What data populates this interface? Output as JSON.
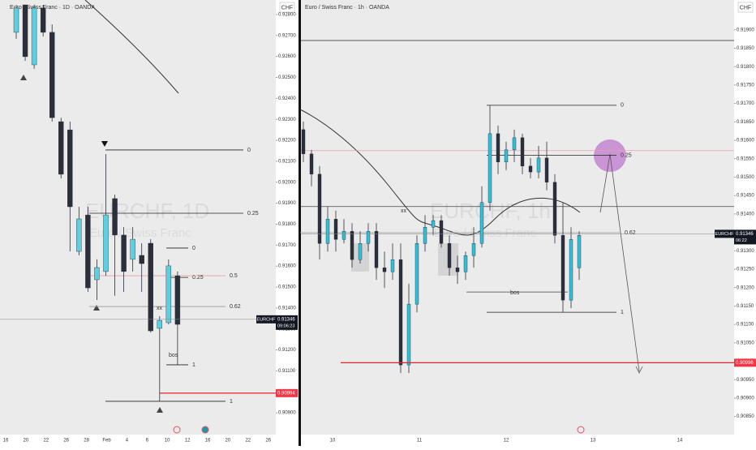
{
  "chart_data": [
    {
      "type": "candlestick",
      "header": "Euro / Swiss Franc · 1D · OANDA",
      "currency": "CHF",
      "watermark": "EURCHF, 1D",
      "watermark_sub": "Euro / Swiss Franc",
      "bull_color": "#5ccfe0",
      "bear_color": "#2b2f3a",
      "open": [
        0.92715,
        0.92846,
        0.9256,
        0.92831,
        0.92715,
        0.92289,
        0.9225,
        0.9167,
        0.91844,
        0.91535,
        0.91574,
        0.91922,
        0.91748,
        0.91632,
        0.91651,
        0.91709,
        0.91303,
        0.9133,
        0.91554
      ],
      "high": [
        0.92846,
        0.92846,
        0.92846,
        0.92846,
        0.92753,
        0.92308,
        0.92289,
        0.91883,
        0.91883,
        0.91632,
        0.92134,
        0.91941,
        0.91786,
        0.91786,
        0.91709,
        0.91728,
        0.91361,
        0.91632,
        0.91574
      ],
      "low": [
        0.92684,
        0.92579,
        0.92541,
        0.92695,
        0.92289,
        0.92018,
        0.9167,
        0.91651,
        0.91477,
        0.91438,
        0.91554,
        0.91458,
        0.91477,
        0.91574,
        0.91477,
        0.91283,
        0.90955,
        0.91322,
        0.91129
      ],
      "close": [
        0.92831,
        0.92599,
        0.92831,
        0.92715,
        0.92308,
        0.92038,
        0.91883,
        0.91825,
        0.91496,
        0.91593,
        0.91844,
        0.91748,
        0.91574,
        0.91728,
        0.91612,
        0.91291,
        0.91341,
        0.91601,
        0.91322
      ],
      "x_labels": [
        "16",
        "20",
        "22",
        "26",
        "28",
        "Feb",
        "4",
        "6",
        "10",
        "12",
        "16",
        "20",
        "22",
        "26"
      ],
      "ylim": [
        0.908,
        0.9285
      ],
      "yticks": [
        {
          "value": 0.909,
          "label": "0.90900"
        },
        {
          "value": 0.91,
          "label": "0.91000"
        },
        {
          "value": 0.911,
          "label": "0.91100"
        },
        {
          "value": 0.912,
          "label": "0.91200"
        },
        {
          "value": 0.913,
          "label": "0.91300"
        },
        {
          "value": 0.914,
          "label": "0.91400"
        },
        {
          "value": 0.915,
          "label": "0.91500"
        },
        {
          "value": 0.916,
          "label": "0.91600"
        },
        {
          "value": 0.917,
          "label": "0.91700"
        },
        {
          "value": 0.918,
          "label": "0.91800"
        },
        {
          "value": 0.919,
          "label": "0.91900"
        },
        {
          "value": 0.92,
          "label": "0.92000"
        },
        {
          "value": 0.921,
          "label": "0.92100"
        },
        {
          "value": 0.922,
          "label": "0.92200"
        },
        {
          "value": 0.923,
          "label": "0.92300"
        },
        {
          "value": 0.924,
          "label": "0.92400"
        },
        {
          "value": 0.925,
          "label": "0.92500"
        },
        {
          "value": 0.926,
          "label": "0.92600"
        },
        {
          "value": 0.927,
          "label": "0.92700"
        },
        {
          "value": 0.928,
          "label": "0.92800"
        }
      ],
      "levels": [
        {
          "label": "0",
          "price": 0.92154,
          "color": "#222222"
        },
        {
          "label": "0.25",
          "price": 0.91852,
          "color": "#222222"
        },
        {
          "label": "0",
          "price": 0.91686,
          "color": "#222222"
        },
        {
          "label": "0.25",
          "price": 0.91546,
          "color": "#222222"
        },
        {
          "label": "0.5",
          "price": 0.91554,
          "color": "#e8a0a8"
        },
        {
          "label": "0.62",
          "price": 0.91407,
          "color": "#999999"
        },
        {
          "label": "1",
          "price": 0.91129,
          "color": "#222222"
        },
        {
          "label": "1",
          "price": 0.90955,
          "color": "#222222"
        }
      ],
      "lines": [],
      "annotations": [
        "bos",
        "xx"
      ],
      "price_tag": {
        "symbol": "EURCHF",
        "price": 0.91346,
        "countdown": "09:06:23"
      },
      "target": 0.90994
    },
    {
      "type": "candlestick",
      "header": "Euro / Swiss Franc · 1h · OANDA",
      "currency": "CHF",
      "watermark": "EURCHF, 1h",
      "watermark_sub": "Euro / Swiss Franc",
      "bull_color": "#2fbfd6",
      "bear_color": "#2b2f3a",
      "open": [
        0.91629,
        0.91563,
        0.91508,
        0.9132,
        0.91386,
        0.91331,
        0.91353,
        0.91276,
        0.9132,
        0.91353,
        0.91254,
        0.91243,
        0.91276,
        0.9099,
        0.91155,
        0.9132,
        0.91364,
        0.91382,
        0.9132,
        0.91254,
        0.91243,
        0.91287,
        0.9132,
        0.91431,
        0.91618,
        0.91541,
        0.91574,
        0.91607,
        0.9153,
        0.91514,
        0.91552,
        0.91486,
        0.91342,
        0.91166,
        0.91254
      ],
      "high": [
        0.91651,
        0.91574,
        0.9153,
        0.9142,
        0.91409,
        0.91386,
        0.91375,
        0.91353,
        0.91375,
        0.91375,
        0.91298,
        0.9132,
        0.9132,
        0.9121,
        0.91342,
        0.91397,
        0.91397,
        0.91397,
        0.91342,
        0.91287,
        0.91298,
        0.91364,
        0.91475,
        0.91695,
        0.9164,
        0.91596,
        0.91629,
        0.91618,
        0.91552,
        0.91585,
        0.91596,
        0.91508,
        0.91431,
        0.91364,
        0.91353
      ],
      "low": [
        0.91541,
        0.91475,
        0.91276,
        0.91298,
        0.91298,
        0.9132,
        0.91254,
        0.91265,
        0.91298,
        0.91221,
        0.91199,
        0.91221,
        0.90968,
        0.90968,
        0.91133,
        0.91298,
        0.91342,
        0.91309,
        0.91232,
        0.9121,
        0.91221,
        0.91254,
        0.91309,
        0.91409,
        0.91508,
        0.91519,
        0.91541,
        0.91508,
        0.91497,
        0.91497,
        0.91464,
        0.9132,
        0.91133,
        0.91144,
        0.91221
      ],
      "close": [
        0.91563,
        0.91508,
        0.9132,
        0.91386,
        0.91331,
        0.91353,
        0.91276,
        0.9132,
        0.91353,
        0.91254,
        0.91243,
        0.91276,
        0.9099,
        0.91155,
        0.9132,
        0.91364,
        0.91382,
        0.9132,
        0.91254,
        0.91243,
        0.91287,
        0.9132,
        0.91431,
        0.91618,
        0.91541,
        0.91574,
        0.91607,
        0.9153,
        0.91514,
        0.91552,
        0.91486,
        0.91342,
        0.91166,
        0.91331,
        0.91342
      ],
      "x_labels": [
        "10",
        "11",
        "12",
        "13",
        "14"
      ],
      "ylim": [
        0.90803,
        0.9197
      ],
      "yticks": [
        {
          "value": 0.9085,
          "label": "0.90850"
        },
        {
          "value": 0.909,
          "label": "0.90900"
        },
        {
          "value": 0.9095,
          "label": "0.90950"
        },
        {
          "value": 0.91,
          "label": "0.91000"
        },
        {
          "value": 0.9105,
          "label": "0.91050"
        },
        {
          "value": 0.911,
          "label": "0.91100"
        },
        {
          "value": 0.9115,
          "label": "0.91150"
        },
        {
          "value": 0.912,
          "label": "0.91200"
        },
        {
          "value": 0.9125,
          "label": "0.91250"
        },
        {
          "value": 0.913,
          "label": "0.91300"
        },
        {
          "value": 0.9135,
          "label": "0.91350"
        },
        {
          "value": 0.914,
          "label": "0.91400"
        },
        {
          "value": 0.9145,
          "label": "0.91450"
        },
        {
          "value": 0.915,
          "label": "0.91500"
        },
        {
          "value": 0.9155,
          "label": "0.91550"
        },
        {
          "value": 0.916,
          "label": "0.91600"
        },
        {
          "value": 0.9165,
          "label": "0.91650"
        },
        {
          "value": 0.917,
          "label": "0.91700"
        },
        {
          "value": 0.9175,
          "label": "0.91750"
        },
        {
          "value": 0.918,
          "label": "0.91800"
        },
        {
          "value": 0.9185,
          "label": "0.91850"
        },
        {
          "value": 0.919,
          "label": "0.91900"
        }
      ],
      "levels": [
        {
          "label": "0",
          "price": 0.91695,
          "color": "#222222"
        },
        {
          "label": "0.25",
          "price": 0.91559,
          "color": "#222222"
        },
        {
          "label": "0.62",
          "price": 0.91349,
          "color": "#999999"
        },
        {
          "label": "1",
          "price": 0.91133,
          "color": "#222222"
        }
      ],
      "lines": [
        {
          "price": 0.91572,
          "color": "#e8a0a8"
        },
        {
          "price": 0.9142,
          "color": "#444444"
        },
        {
          "price": 0.91871,
          "color": "#444444"
        },
        {
          "price": 0.91188,
          "color": "#444444"
        }
      ],
      "annotations": [
        "bos",
        "xx"
      ],
      "price_tag": {
        "symbol": "EURCHF",
        "price": 0.91346,
        "countdown": "06:22"
      },
      "target": 0.90996
    }
  ]
}
